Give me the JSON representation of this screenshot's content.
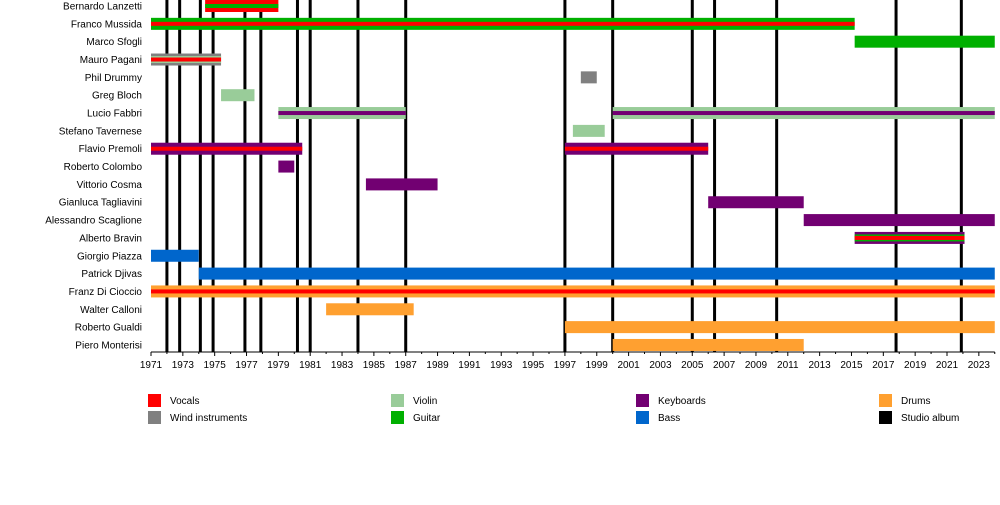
{
  "chart_data": {
    "type": "timeline",
    "title": "",
    "xlim": [
      1971,
      2024
    ],
    "x_tick_labels": [
      "1971",
      "1973",
      "1975",
      "1977",
      "1979",
      "1981",
      "1983",
      "1985",
      "1987",
      "1989",
      "1991",
      "1993",
      "1995",
      "1997",
      "1999",
      "2001",
      "2003",
      "2005",
      "2007",
      "2009",
      "2011",
      "2013",
      "2015",
      "2017",
      "2019",
      "2021",
      "2023"
    ],
    "instruments": {
      "vocals": {
        "label": "Vocals",
        "color": "#ff0000"
      },
      "wind": {
        "label": "Wind instruments",
        "color": "#808080"
      },
      "violin": {
        "label": "Violin",
        "color": "#99cc99"
      },
      "guitar": {
        "label": "Guitar",
        "color": "#00b000"
      },
      "keyboards": {
        "label": "Keyboards",
        "color": "#720072"
      },
      "bass": {
        "label": "Bass",
        "color": "#0066cc"
      },
      "drums": {
        "label": "Drums",
        "color": "#ffa030"
      },
      "studio": {
        "label": "Studio album",
        "color": "#000000"
      }
    },
    "legend_order": [
      [
        "vocals",
        "wind"
      ],
      [
        "violin",
        "guitar"
      ],
      [
        "keyboards",
        "bass"
      ],
      [
        "drums",
        "studio"
      ]
    ],
    "legend_placement": "bottom",
    "members": [
      {
        "name": "Bernardo Lanzetti",
        "periods": [
          {
            "start": 1974.4,
            "end": 1979.0,
            "roles": [
              "vocals",
              "guitar"
            ]
          }
        ]
      },
      {
        "name": "Franco Mussida",
        "periods": [
          {
            "start": 1971.0,
            "end": 2015.2,
            "roles": [
              "guitar",
              "vocals"
            ]
          }
        ]
      },
      {
        "name": "Marco Sfogli",
        "periods": [
          {
            "start": 2015.2,
            "end": 2024.0,
            "roles": [
              "guitar"
            ]
          }
        ]
      },
      {
        "name": "Mauro Pagani",
        "periods": [
          {
            "start": 1971.0,
            "end": 1975.4,
            "roles": [
              "wind",
              "violin",
              "vocals"
            ]
          }
        ]
      },
      {
        "name": "Phil Drummy",
        "periods": [
          {
            "start": 1998.0,
            "end": 1999.0,
            "roles": [
              "wind"
            ]
          }
        ]
      },
      {
        "name": "Greg Bloch",
        "periods": [
          {
            "start": 1975.4,
            "end": 1977.5,
            "roles": [
              "violin"
            ]
          }
        ]
      },
      {
        "name": "Lucio Fabbri",
        "periods": [
          {
            "start": 1979.0,
            "end": 1987.0,
            "roles": [
              "violin",
              "keyboards"
            ]
          },
          {
            "start": 2000.0,
            "end": 2024.0,
            "roles": [
              "violin",
              "keyboards"
            ]
          }
        ]
      },
      {
        "name": "Stefano Tavernese",
        "periods": [
          {
            "start": 1997.5,
            "end": 1999.5,
            "roles": [
              "violin"
            ]
          }
        ]
      },
      {
        "name": "Flavio Premoli",
        "periods": [
          {
            "start": 1971.0,
            "end": 1980.5,
            "roles": [
              "keyboards",
              "vocals"
            ]
          },
          {
            "start": 1997.0,
            "end": 2006.0,
            "roles": [
              "keyboards",
              "vocals"
            ]
          }
        ]
      },
      {
        "name": "Roberto Colombo",
        "periods": [
          {
            "start": 1979.0,
            "end": 1980.0,
            "roles": [
              "keyboards"
            ]
          }
        ]
      },
      {
        "name": "Vittorio Cosma",
        "periods": [
          {
            "start": 1984.5,
            "end": 1989.0,
            "roles": [
              "keyboards"
            ]
          }
        ]
      },
      {
        "name": "Gianluca Tagliavini",
        "periods": [
          {
            "start": 2006.0,
            "end": 2012.0,
            "roles": [
              "keyboards"
            ]
          }
        ]
      },
      {
        "name": "Alessandro Scaglione",
        "periods": [
          {
            "start": 2012.0,
            "end": 2024.0,
            "roles": [
              "keyboards"
            ]
          }
        ]
      },
      {
        "name": "Alberto Bravin",
        "periods": [
          {
            "start": 2015.2,
            "end": 2022.1,
            "roles": [
              "keyboards",
              "guitar",
              "vocals"
            ]
          }
        ]
      },
      {
        "name": "Giorgio Piazza",
        "periods": [
          {
            "start": 1971.0,
            "end": 1974.0,
            "roles": [
              "bass"
            ]
          }
        ]
      },
      {
        "name": "Patrick Djivas",
        "periods": [
          {
            "start": 1974.0,
            "end": 2024.0,
            "roles": [
              "bass"
            ]
          }
        ]
      },
      {
        "name": "Franz Di Cioccio",
        "periods": [
          {
            "start": 1971.0,
            "end": 2024.0,
            "roles": [
              "drums",
              "vocals"
            ]
          }
        ]
      },
      {
        "name": "Walter Calloni",
        "periods": [
          {
            "start": 1982.0,
            "end": 1987.5,
            "roles": [
              "drums"
            ]
          }
        ]
      },
      {
        "name": "Roberto Gualdi",
        "periods": [
          {
            "start": 1997.0,
            "end": 2024.0,
            "roles": [
              "drums"
            ]
          }
        ]
      },
      {
        "name": "Piero Monterisi",
        "periods": [
          {
            "start": 2000.0,
            "end": 2012.0,
            "roles": [
              "drums"
            ]
          }
        ]
      }
    ],
    "studio_albums": [
      1972.0,
      1972.8,
      1974.1,
      1974.9,
      1976.9,
      1977.9,
      1980.2,
      1981.0,
      1984.0,
      1987.0,
      1997.0,
      2000.0,
      2005.0,
      2006.4,
      2010.3,
      2017.8,
      2021.9
    ]
  }
}
